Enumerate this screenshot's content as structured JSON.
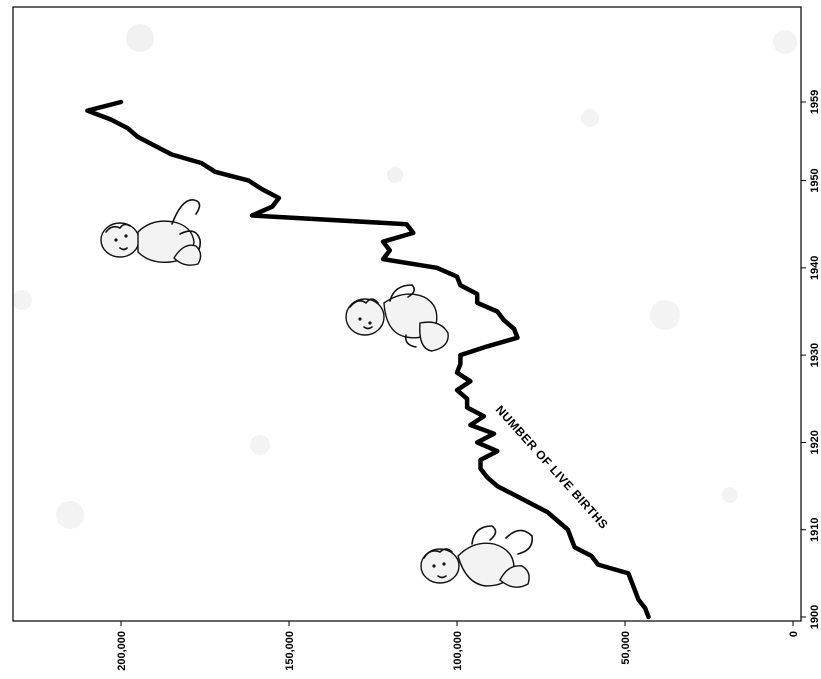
{
  "chart_data": {
    "type": "line",
    "orientation": "rotated-90",
    "series_label": "NUMBER OF LIVE BIRTHS",
    "x_ticks": [
      "1900",
      "1910",
      "1920",
      "1930",
      "1940",
      "1950",
      "1959"
    ],
    "y_ticks": [
      "0",
      "50,000",
      "100,000",
      "150,000",
      "200,000"
    ],
    "xlim": [
      1900,
      1959
    ],
    "ylim": [
      0,
      215000
    ],
    "series": [
      {
        "x": [
          1900,
          1901,
          1902,
          1903,
          1904,
          1905,
          1906,
          1907,
          1908,
          1909,
          1910,
          1911,
          1912,
          1913,
          1914,
          1915,
          1916,
          1917,
          1918,
          1919,
          1920,
          1921,
          1922,
          1923,
          1924,
          1925,
          1926,
          1927,
          1928,
          1929,
          1930,
          1931,
          1932,
          1933,
          1934,
          1935,
          1936,
          1937,
          1938,
          1939,
          1940,
          1941,
          1942,
          1943,
          1944,
          1945,
          1946,
          1947,
          1948,
          1949,
          1950,
          1951,
          1952,
          1953,
          1954,
          1955,
          1956,
          1957,
          1958,
          1959
        ],
        "values": [
          43000,
          44000,
          46000,
          47000,
          48000,
          49000,
          58000,
          60000,
          65000,
          66000,
          67000,
          70000,
          73000,
          78000,
          83000,
          88000,
          91000,
          93000,
          93000,
          88000,
          94000,
          89000,
          96000,
          92000,
          97000,
          97000,
          100000,
          96000,
          100000,
          99000,
          99000,
          91000,
          82000,
          83000,
          86000,
          88000,
          94000,
          94000,
          99000,
          100000,
          106000,
          122000,
          120000,
          122000,
          113000,
          115000,
          161000,
          155000,
          153000,
          158000,
          162000,
          172000,
          176000,
          185000,
          190000,
          195000,
          198000,
          203000,
          210000,
          200000
        ]
      }
    ]
  }
}
